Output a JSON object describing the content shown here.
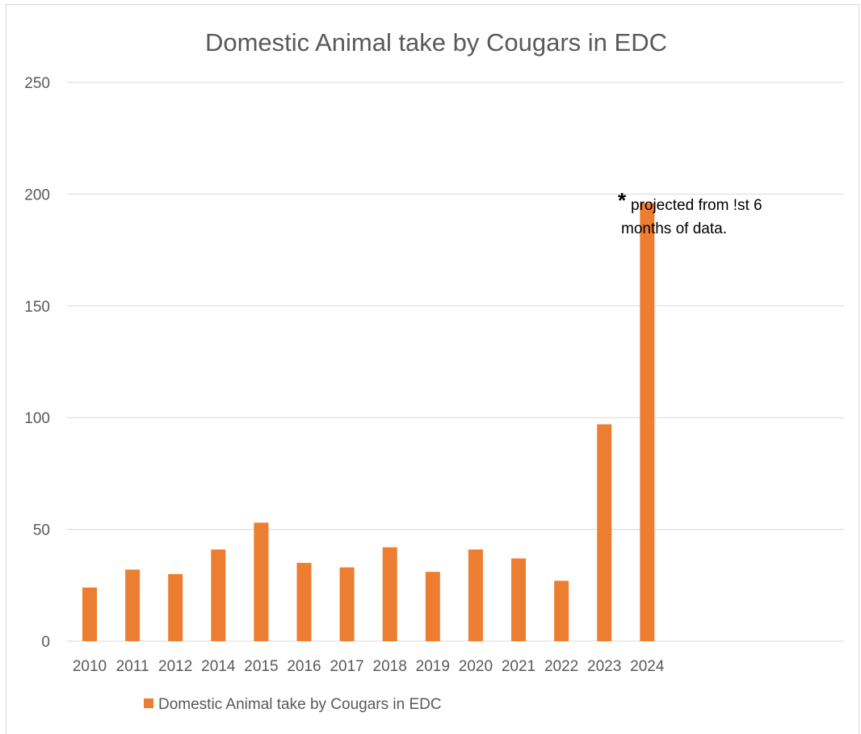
{
  "chart_data": {
    "type": "bar",
    "title": "Domestic Animal take by Cougars in EDC",
    "categories": [
      "2010",
      "2011",
      "2012",
      "2014",
      "2015",
      "2016",
      "2017",
      "2018",
      "2019",
      "2020",
      "2021",
      "2022",
      "2023",
      "2024"
    ],
    "series": [
      {
        "name": "Domestic Animal take by Cougars in EDC",
        "color": "#ED7D31",
        "values": [
          24,
          32,
          30,
          41,
          53,
          35,
          33,
          42,
          31,
          41,
          37,
          27,
          97,
          196
        ]
      }
    ],
    "ylim": [
      0,
      250
    ],
    "yticks": [
      0,
      50,
      100,
      150,
      200,
      250
    ],
    "xlabel": "",
    "ylabel": "",
    "grid": true,
    "legend_position": "bottom",
    "annotation": {
      "asterisk": "*",
      "line1": "projected from !st 6",
      "line2": "months of data."
    }
  }
}
